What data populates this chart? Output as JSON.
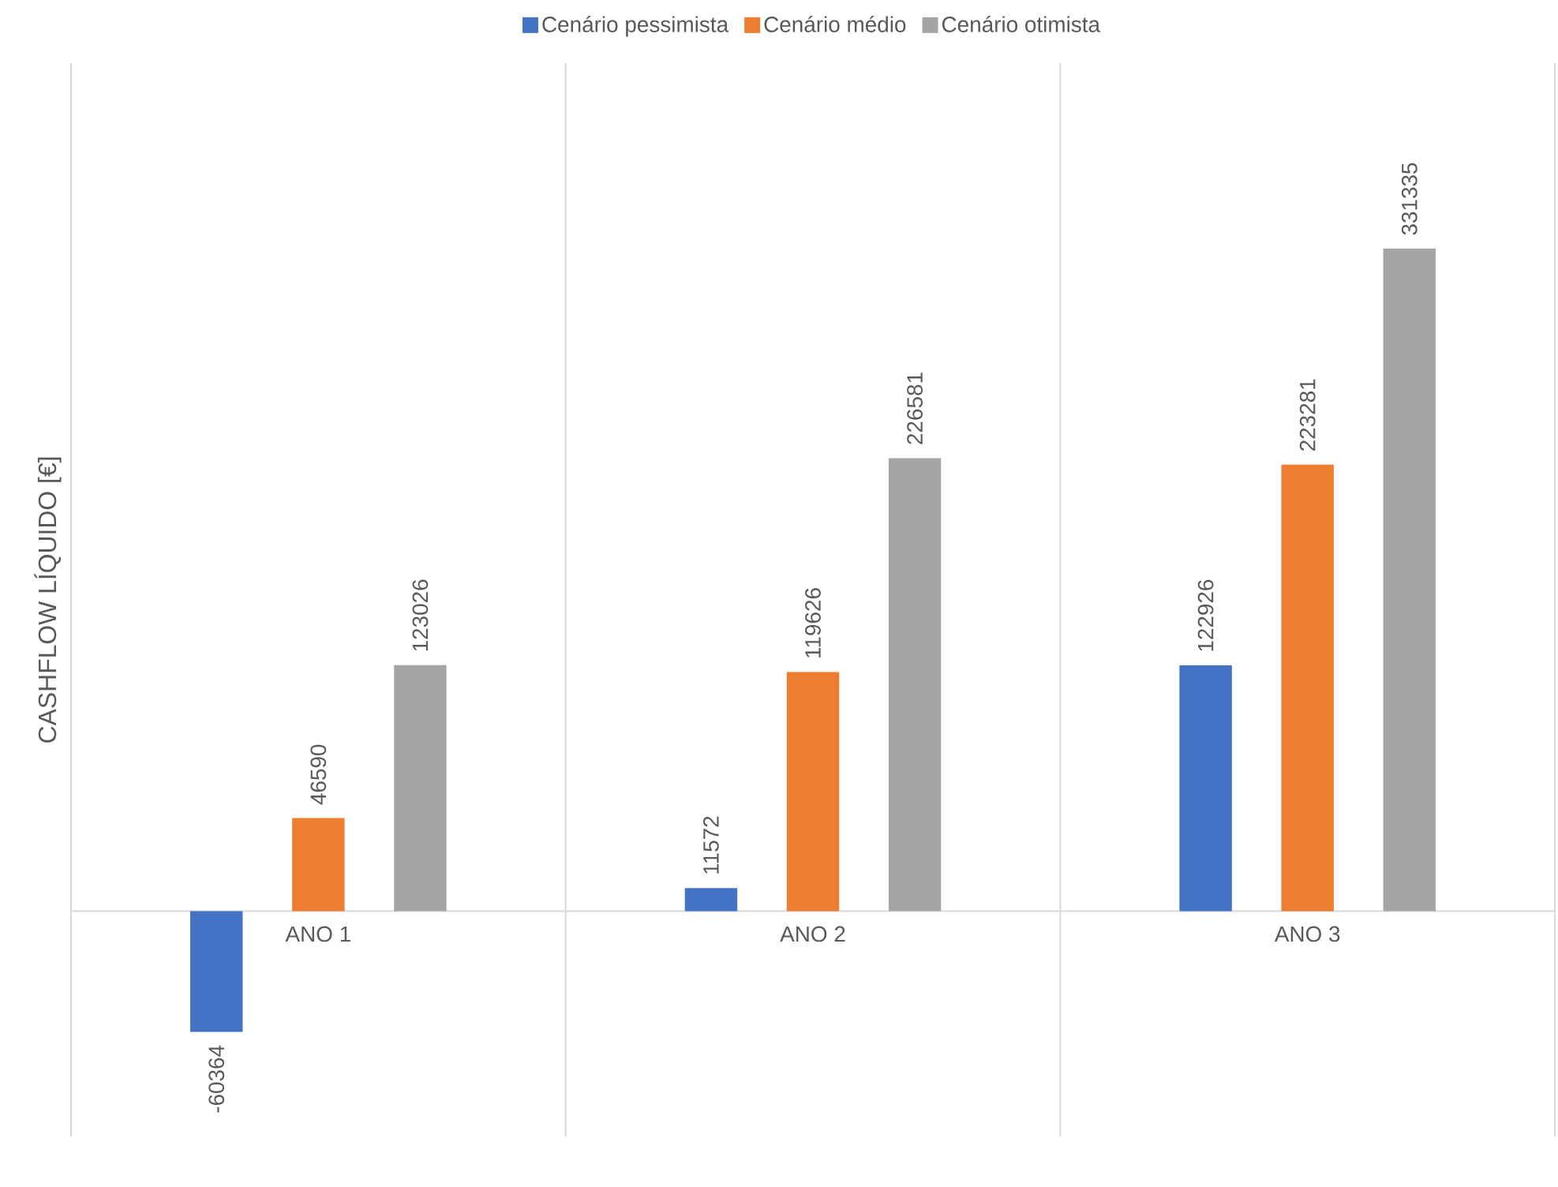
{
  "chart_data": {
    "type": "bar",
    "ylabel": "CASHFLOW LÍQUIDO [€]",
    "categories": [
      "ANO 1",
      "ANO 2",
      "ANO 3"
    ],
    "series": [
      {
        "name": "Cenário pessimista",
        "color": "#4472c4",
        "values": [
          -60364,
          11572,
          122926
        ]
      },
      {
        "name": "Cenário médio",
        "color": "#ed7d31",
        "values": [
          46590,
          119626,
          223281
        ]
      },
      {
        "name": "Cenário otimista",
        "color": "#a5a5a5",
        "values": [
          123026,
          226581,
          331335
        ]
      }
    ],
    "data_labels": true,
    "grid": "x",
    "legend": "top"
  }
}
